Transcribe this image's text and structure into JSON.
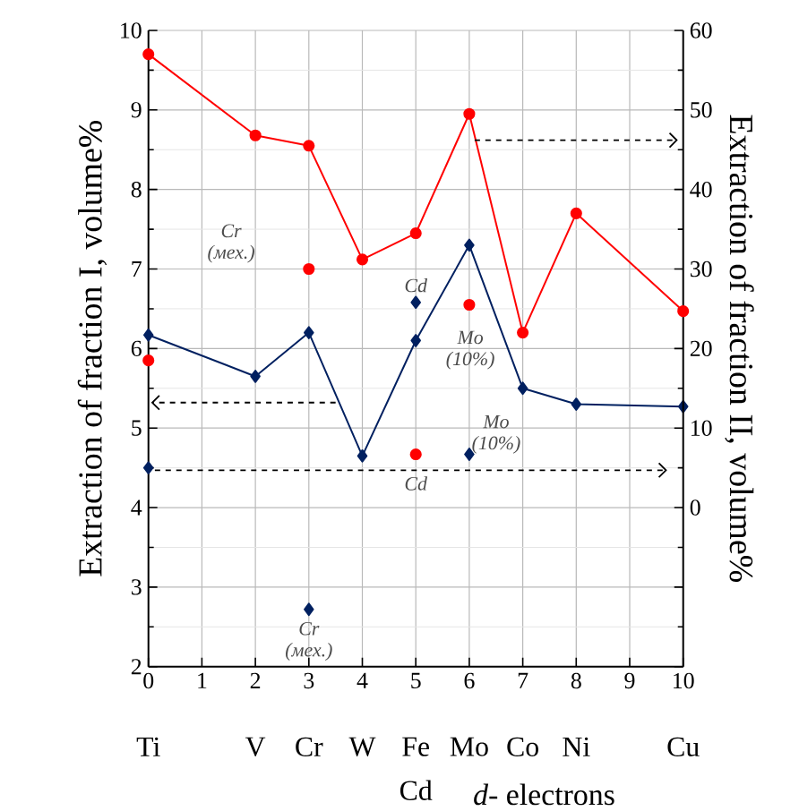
{
  "chart_data": {
    "type": "line",
    "xlabel": "*d*- electrons",
    "ylabel": "Extraction of fraction I, volume%",
    "y2label": "Extraction of fraction II, volume%",
    "xlim": [
      0,
      10
    ],
    "xticks": [
      0,
      1,
      2,
      3,
      4,
      5,
      6,
      7,
      8,
      9,
      10
    ],
    "ylim": [
      2,
      10
    ],
    "yticks": [
      2,
      3,
      4,
      5,
      6,
      7,
      8,
      9,
      10
    ],
    "y2lim": [
      -20,
      60
    ],
    "y2ticks": [
      {
        "value": -20,
        "label": null
      },
      {
        "value": -10,
        "label": null
      },
      0,
      10,
      20,
      30,
      40,
      50,
      60
    ],
    "grid": true,
    "ref_lines": [
      {
        "axis": "y",
        "value": 4.47,
        "color": "#000000",
        "line_style": "dashed"
      }
    ],
    "series": [
      {
        "axis": "y2",
        "color": "#ff0000",
        "marker": "circle",
        "x": [
          0,
          2,
          3,
          4,
          5,
          6,
          7,
          8,
          10
        ],
        "values": [
          57,
          46.8,
          45.5,
          31.2,
          34.5,
          49.5,
          22,
          37,
          24.7
        ]
      },
      {
        "type": "scatter",
        "axis": "y2",
        "color": "#ff0000",
        "marker": "circle",
        "x": [
          3,
          5,
          6
        ],
        "values": [
          30,
          6.7,
          25.5
        ]
      },
      {
        "type": "scatter",
        "axis": "y2",
        "color": "#ff0000",
        "marker": "circle",
        "x": [
          0
        ],
        "values": [
          18.5
        ]
      },
      {
        "axis": "y",
        "color": "#002060",
        "marker": "diamond",
        "x": [
          0,
          2,
          3,
          4,
          5,
          6,
          7,
          8,
          10
        ],
        "values": [
          6.17,
          5.65,
          6.2,
          4.65,
          6.1,
          7.3,
          5.5,
          5.3,
          5.27
        ]
      },
      {
        "type": "scatter",
        "axis": "y",
        "color": "#002060",
        "marker": "diamond",
        "x": [
          3,
          5,
          6
        ],
        "values": [
          2.72,
          6.58,
          4.67
        ]
      },
      {
        "type": "scatter",
        "axis": "y",
        "color": "#002060",
        "marker": "diamond",
        "x": [
          0
        ],
        "values": [
          4.5
        ]
      }
    ],
    "annotations": [
      {
        "text": "Cr (мех.)",
        "x": 3,
        "y": 7
      },
      {
        "text": "Cd",
        "x": 5,
        "y": 6.58
      },
      {
        "text": "Mo (10%)",
        "x": 6,
        "y": 6.55
      },
      {
        "text": "Mo (10%)",
        "x": 6,
        "y": 4.67
      },
      {
        "text": "Cd",
        "x": 5,
        "y": 4.67
      },
      {
        "text": "Cr (мех.)",
        "x": 3,
        "y": 2.72
      },
      "Ti",
      "V",
      "Cr",
      "W",
      "Fe",
      "Cd",
      "Mo",
      "Co",
      "Ni",
      "Cu"
    ]
  }
}
